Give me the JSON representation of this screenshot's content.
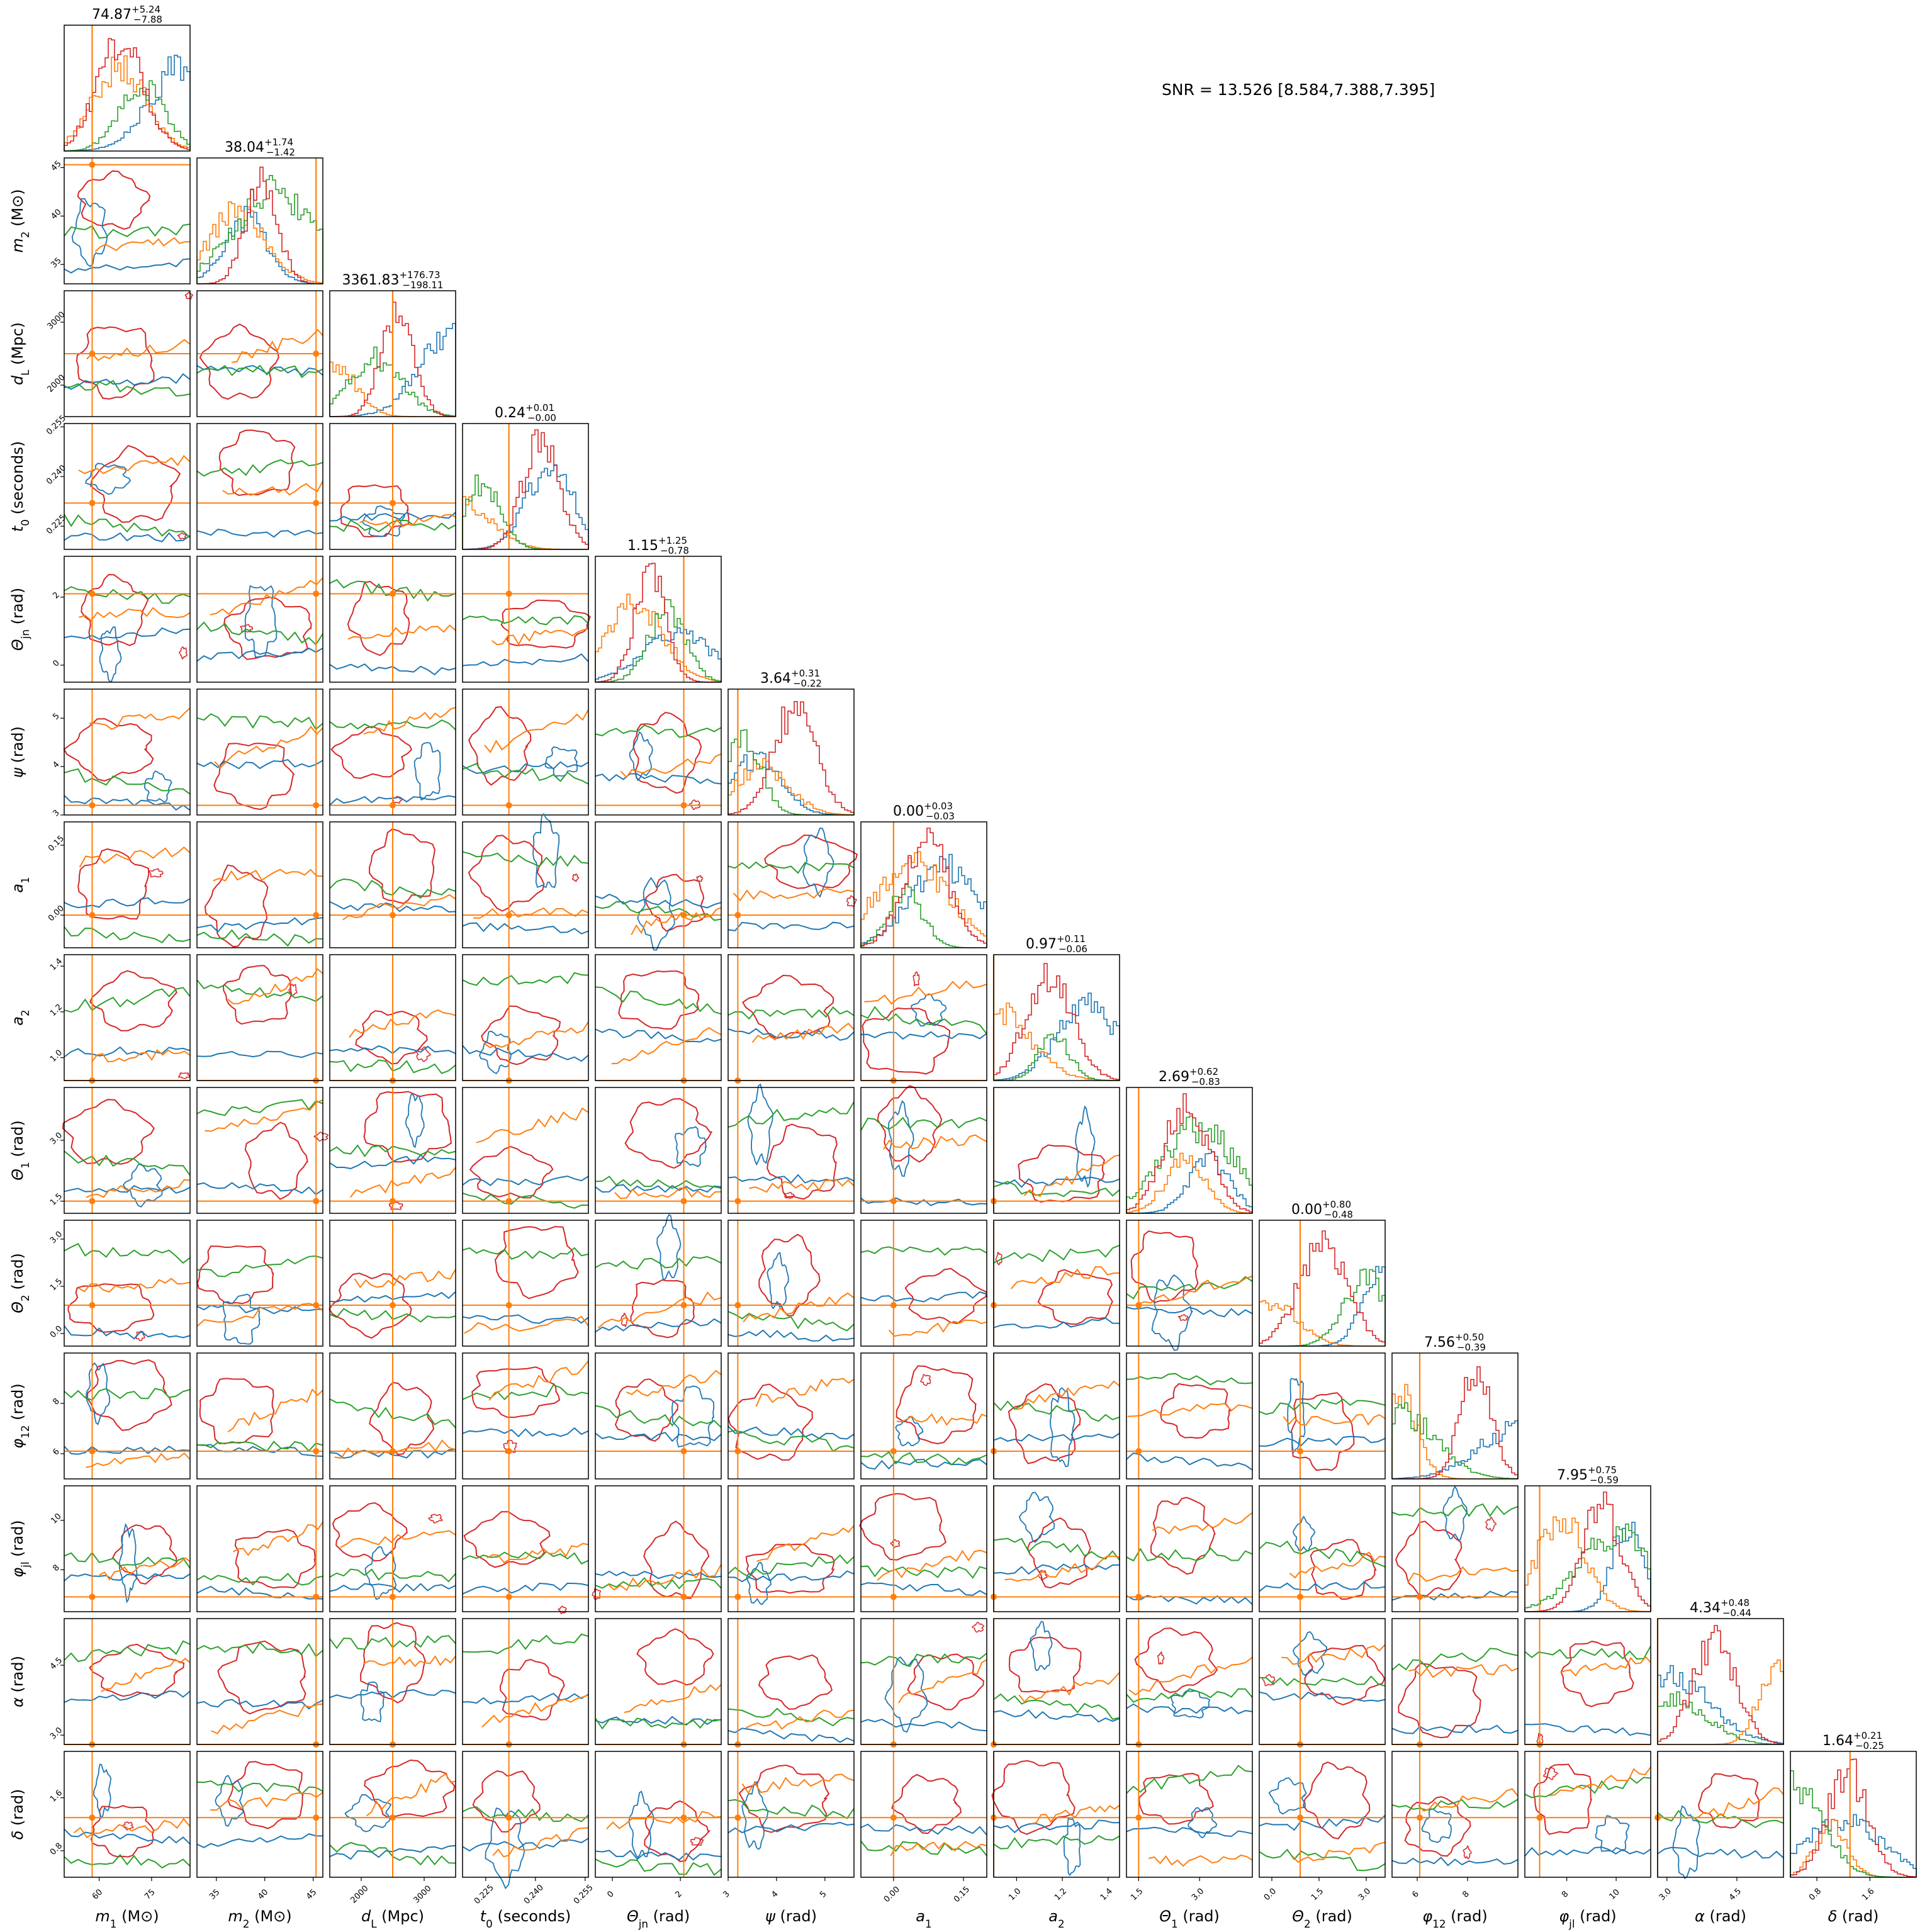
{
  "snr_label": "SNR = 13.526 [8.584,7.388,7.395]",
  "colors": {
    "truth": "#ff7f0e",
    "series": [
      "#1f77b4",
      "#ff7f0e",
      "#2ca02c",
      "#d62728"
    ],
    "frame": "#000000"
  },
  "chart_data": {
    "type": "corner",
    "n_params": 14,
    "params": [
      {
        "label": "m1 (M⊙)",
        "ticks": [
          "60",
          "75"
        ],
        "range": [
          50,
          86
        ],
        "title": "74.87",
        "plus": "+5.24",
        "minus": "−7.88",
        "truth": 58
      },
      {
        "label": "m2 (M⊙)",
        "ticks": [
          "35",
          "40",
          "45"
        ],
        "range": [
          33,
          46
        ],
        "title": "38.04",
        "plus": "+1.74",
        "minus": "−1.42",
        "truth": 45.3
      },
      {
        "label": "dL (Mpc)",
        "ticks": [
          "2000",
          "3000"
        ],
        "range": [
          1500,
          3500
        ],
        "title": "3361.83",
        "plus": "+176.73",
        "minus": "−198.11",
        "truth": 2500
      },
      {
        "label": "t0 (seconds)",
        "ticks": [
          "0.225",
          "0.240",
          "0.255"
        ],
        "range": [
          0.218,
          0.256
        ],
        "title": "0.24",
        "plus": "+0.01",
        "minus": "−0.00",
        "truth": 0.232
      },
      {
        "label": "Θjn (rad)",
        "ticks": [
          "0",
          "2"
        ],
        "range": [
          -0.5,
          3.2
        ],
        "title": "1.15",
        "plus": "+1.25",
        "minus": "−0.78",
        "truth": 2.1
      },
      {
        "label": "ψ (rad)",
        "ticks": [
          "3",
          "4",
          "5"
        ],
        "range": [
          3,
          5.6
        ],
        "title": "3.64",
        "plus": "+0.31",
        "minus": "−0.22",
        "truth": 3.2
      },
      {
        "label": "a1",
        "ticks": [
          "0.00",
          "0.15"
        ],
        "range": [
          -0.07,
          0.2
        ],
        "title": "0.00",
        "plus": "+0.03",
        "minus": "−0.03",
        "truth": 0.0
      },
      {
        "label": "a2",
        "ticks": [
          "1.0",
          "1.2",
          "1.4"
        ],
        "range": [
          0.9,
          1.45
        ],
        "title": "0.97",
        "plus": "+0.11",
        "minus": "−0.06",
        "truth": 0.9
      },
      {
        "label": "Θ1 (rad)",
        "ticks": [
          "1.5",
          "3.0"
        ],
        "range": [
          1.2,
          4.3
        ],
        "title": "2.69",
        "plus": "+0.62",
        "minus": "−0.83",
        "truth": 1.5
      },
      {
        "label": "Θ2 (rad)",
        "ticks": [
          "0.0",
          "1.5",
          "3.0"
        ],
        "range": [
          -0.4,
          3.6
        ],
        "title": "0.00",
        "plus": "+0.80",
        "minus": "−0.48",
        "truth": 0.9
      },
      {
        "label": "φ12 (rad)",
        "ticks": [
          "6",
          "8"
        ],
        "range": [
          5,
          10
        ],
        "title": "7.56",
        "plus": "+0.50",
        "minus": "−0.39",
        "truth": 6.1
      },
      {
        "label": "φjl (rad)",
        "ticks": [
          "8",
          "10"
        ],
        "range": [
          6.3,
          11.4
        ],
        "title": "7.95",
        "plus": "+0.75",
        "minus": "−0.59",
        "truth": 6.9
      },
      {
        "label": "α (rad)",
        "ticks": [
          "3.0",
          "4.5"
        ],
        "range": [
          2.8,
          5.5
        ],
        "title": "4.34",
        "plus": "+0.48",
        "minus": "−0.44",
        "truth": 2.8
      },
      {
        "label": "δ (rad)",
        "ticks": [
          "0.8",
          "1.6"
        ],
        "range": [
          0.4,
          2.3
        ],
        "title": "1.64",
        "plus": "+0.21",
        "minus": "−0.25",
        "truth": 1.3
      }
    ],
    "series_colors": [
      "#1f77b4",
      "#ff7f0e",
      "#2ca02c",
      "#d62728"
    ],
    "truth_color": "#ff7f0e",
    "legend": "none",
    "grid": false
  }
}
